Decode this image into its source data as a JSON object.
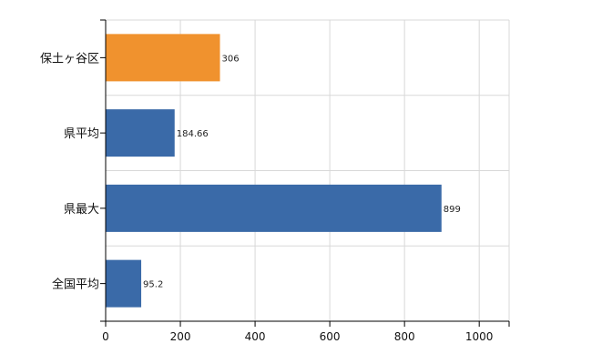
{
  "chart_data": {
    "type": "bar",
    "orientation": "horizontal",
    "categories": [
      "保土ヶ谷区",
      "県平均",
      "県最大",
      "全国平均"
    ],
    "values": [
      306,
      184.66,
      899,
      95.2
    ],
    "value_labels": [
      "306",
      "184.66",
      "899",
      "95.2"
    ],
    "bar_colors": [
      "#f0922e",
      "#3a6aa8",
      "#3a6aa8",
      "#3a6aa8"
    ],
    "xlim": [
      0,
      1080
    ],
    "xticks": [
      0,
      200,
      400,
      600,
      800,
      1000
    ],
    "xtick_labels": [
      "0",
      "200",
      "400",
      "600",
      "800",
      "1000"
    ],
    "grid": true,
    "gridline_color": "#d8d8d8",
    "axis_color": "#000000"
  }
}
